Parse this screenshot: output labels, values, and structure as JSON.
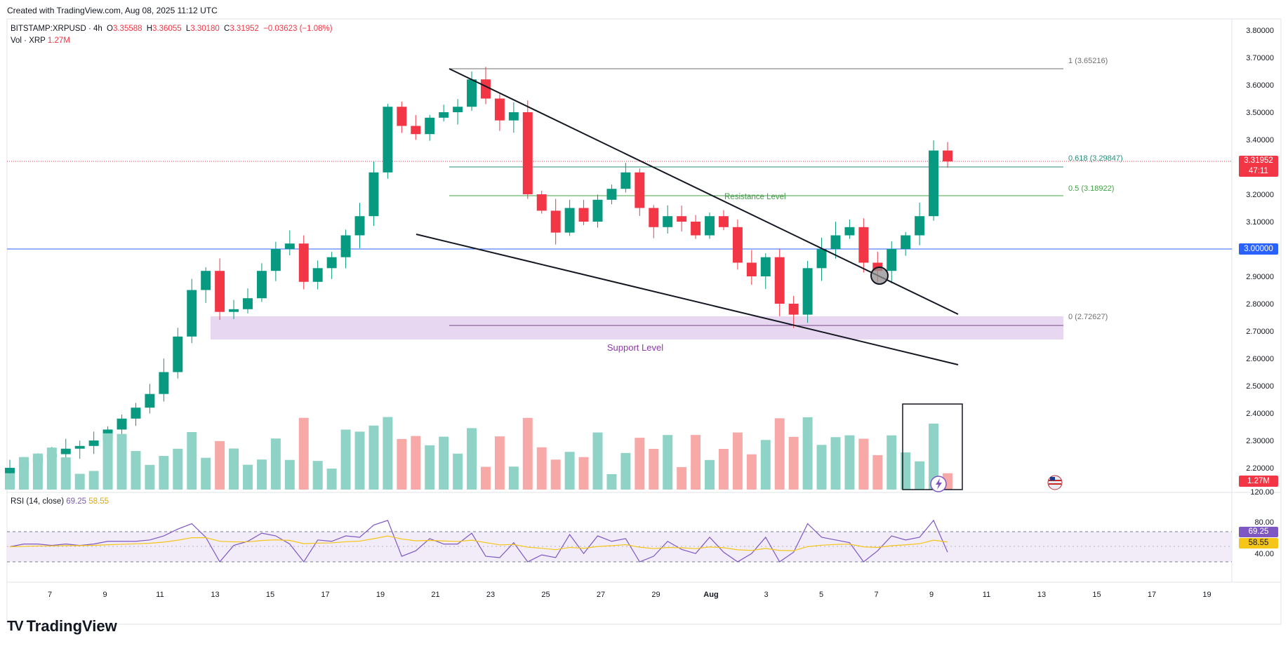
{
  "header": {
    "created": "Created with TradingView.com, Aug 08, 2025 11:12 UTC",
    "symbol": "BITSTAMP:XRPUSD · 4h",
    "open_label": "O",
    "open": "3.35588",
    "high_label": "H",
    "high": "3.36055",
    "low_label": "L",
    "low": "3.30180",
    "close_label": "C",
    "close": "3.31952",
    "change": "−0.03623 (−1.08%)",
    "vol_label": "Vol · XRP",
    "vol_value": "1.27M",
    "rsi_label": "RSI (14, close)",
    "rsi_value": "69.25",
    "rsi_ma_value": "58.55"
  },
  "brand": {
    "name": "TradingView"
  },
  "colors": {
    "up": "#089981",
    "down": "#f23645",
    "volUp": "#8fd2c6",
    "volDown": "#f7a9a7",
    "fib": "#2b8c7a",
    "support": "#e6d5ef",
    "rsiLine": "#7e57c2",
    "rsiMa": "#f5c518",
    "line3": "#2962ff"
  },
  "price_axis": {
    "ticks": [
      "3.80000",
      "3.70000",
      "3.60000",
      "3.50000",
      "3.40000",
      "3.30000",
      "3.20000",
      "3.10000",
      "2.90000",
      "2.80000",
      "2.70000",
      "2.60000",
      "2.50000",
      "2.40000",
      "2.30000",
      "2.20000",
      "120.00"
    ],
    "current_price": "3.31952",
    "countdown": "47:11",
    "level_label": "3.00000",
    "vol_tag": "1.27M"
  },
  "rsi_axis": {
    "ticks": [
      "80.00",
      "40.00"
    ],
    "rsi_tag": "69.25",
    "ma_tag": "58.55"
  },
  "time_axis": {
    "labels": [
      "7",
      "9",
      "11",
      "13",
      "15",
      "17",
      "19",
      "21",
      "23",
      "25",
      "27",
      "29",
      "Aug",
      "3",
      "5",
      "7",
      "9",
      "11",
      "13",
      "15",
      "17",
      "19"
    ]
  },
  "annotations": {
    "fib1": "1 (3.65216)",
    "fib0618": "0.618 (3.29847)",
    "fib05": "0.5 (3.18922)",
    "fib0": "0 (2.72627)",
    "resistance": "Resistance Level",
    "support": "Support Level"
  },
  "chart_data": {
    "type": "candlestick",
    "title": "BITSTAMP:XRPUSD · 4h",
    "x_range": [
      "Jul 6",
      "Aug 8"
    ],
    "ylim": [
      2.17,
      3.82
    ],
    "grid": false,
    "horizontal_levels": [
      3.65216,
      3.29847,
      3.18922,
      3.0,
      2.72627
    ],
    "support_zone": [
      2.68,
      2.76
    ],
    "trendlines": [
      {
        "from": {
          "date": "Jul 21",
          "price": 3.652
        },
        "to": {
          "date": "Aug 9",
          "price": 2.76
        }
      },
      {
        "from": {
          "date": "Jul 15",
          "price": 3.05
        },
        "to": {
          "date": "Aug 9",
          "price": 2.58
        }
      }
    ],
    "close_series_approx": [
      2.2,
      2.22,
      2.24,
      2.25,
      2.27,
      2.28,
      2.3,
      2.34,
      2.38,
      2.42,
      2.47,
      2.55,
      2.68,
      2.85,
      2.92,
      2.77,
      2.78,
      2.82,
      2.92,
      3.0,
      3.02,
      2.88,
      2.93,
      2.97,
      3.05,
      3.12,
      3.28,
      3.52,
      3.45,
      3.42,
      3.48,
      3.5,
      3.52,
      3.62,
      3.55,
      3.47,
      3.5,
      3.2,
      3.14,
      3.06,
      3.15,
      3.1,
      3.18,
      3.22,
      3.28,
      3.15,
      3.08,
      3.12,
      3.1,
      3.05,
      3.12,
      3.08,
      2.95,
      2.9,
      2.97,
      2.8,
      2.76,
      2.93,
      3.0,
      3.05,
      3.08,
      2.95,
      2.92,
      3.0,
      3.05,
      3.12,
      3.36,
      3.32
    ],
    "volume_label": "Vol · XRP",
    "rsi": {
      "period": 14,
      "last": 69.25,
      "ma_last": 58.55,
      "levels": [
        70,
        50,
        30
      ]
    }
  }
}
